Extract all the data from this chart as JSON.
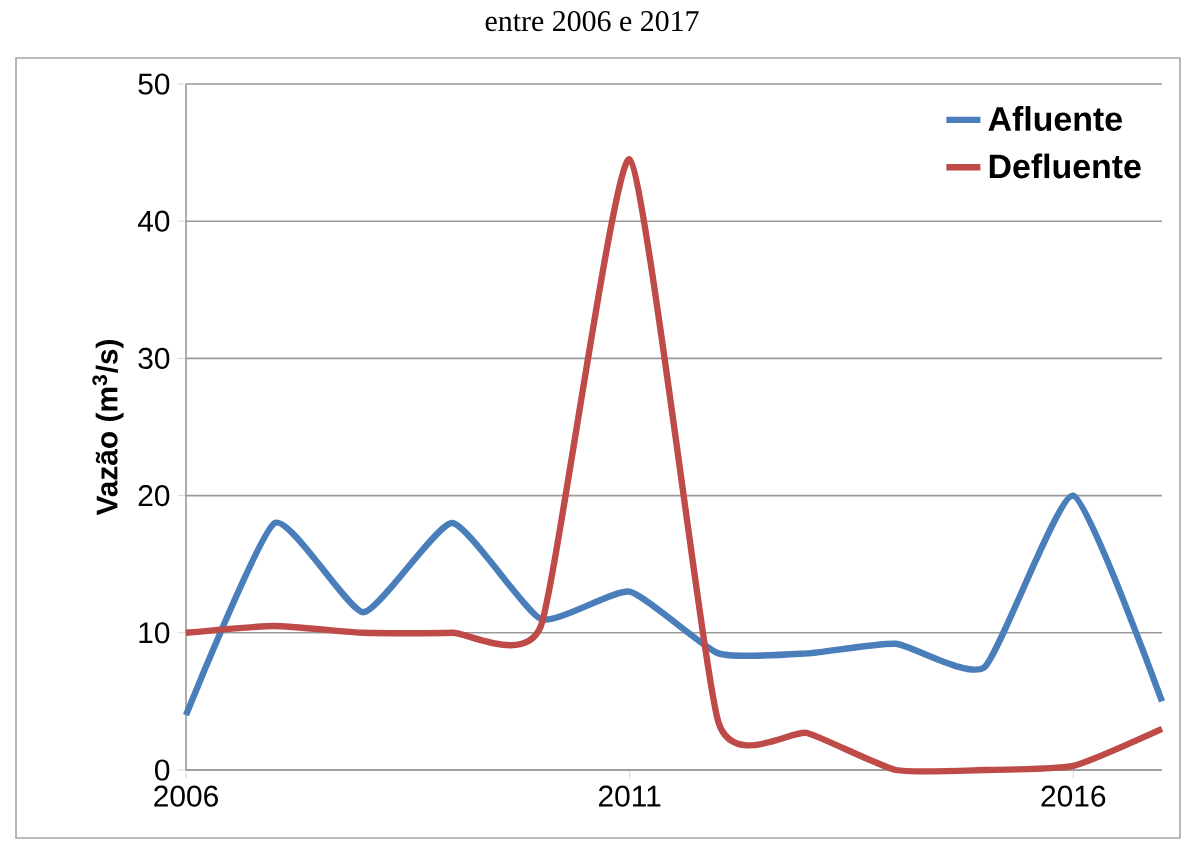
{
  "chart_data": {
    "type": "line",
    "title": "entre 2006 e 2017",
    "ylabel": "Vazão (m$^{3}$/s)",
    "x": [
      2006,
      2007,
      2008,
      2009,
      2010,
      2011,
      2012,
      2013,
      2014,
      2015,
      2016,
      2017
    ],
    "series": [
      {
        "name": "Afluente",
        "color": "#4a7ebb",
        "values": [
          4,
          18,
          11.5,
          18,
          11,
          13,
          8.5,
          8.5,
          9.2,
          7.5,
          20,
          5
        ]
      },
      {
        "name": "Defluente",
        "color": "#be4b48",
        "values": [
          10,
          10.5,
          10,
          10,
          10.5,
          44.5,
          3.5,
          2.7,
          0,
          0,
          0.3,
          3
        ]
      }
    ],
    "xlim": [
      2006,
      2017
    ],
    "xticks": [
      2006,
      2011,
      2016
    ],
    "ylim": [
      0,
      50
    ],
    "yticks": [
      0,
      10,
      20,
      30,
      40,
      50
    ],
    "grid": "y",
    "legend": "top right",
    "marker": "none",
    "line_style": "solid"
  }
}
